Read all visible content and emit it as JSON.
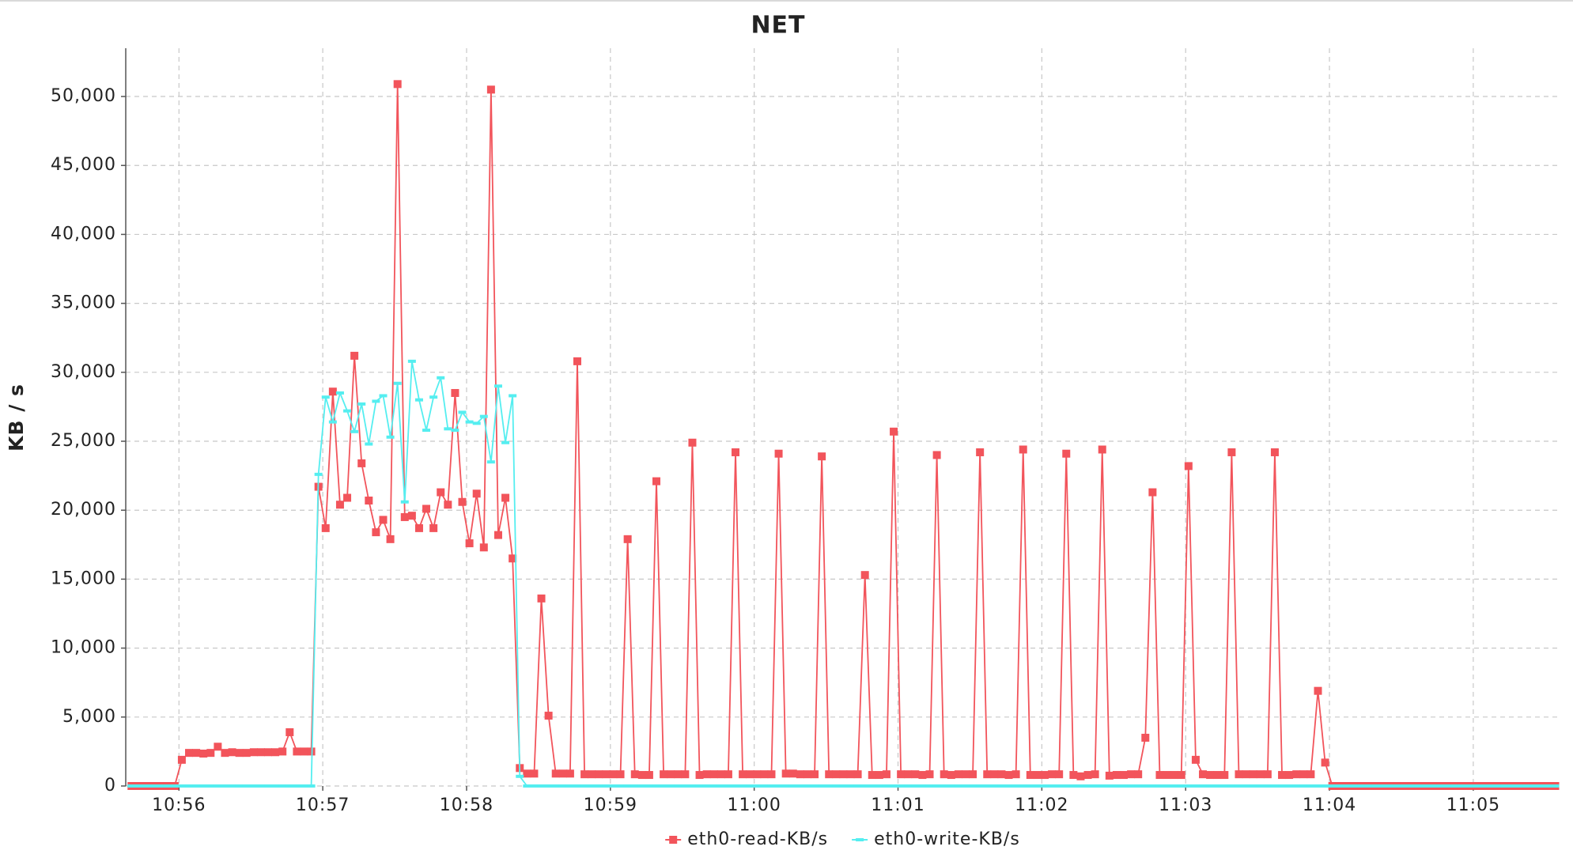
{
  "chart_data": {
    "type": "line",
    "title": "NET",
    "ylabel": "KB / s",
    "x": [
      655.67,
      655.72,
      655.77,
      655.82,
      655.87,
      655.92,
      655.97,
      656.02,
      656.07,
      656.12,
      656.17,
      656.22,
      656.27,
      656.32,
      656.37,
      656.42,
      656.47,
      656.52,
      656.57,
      656.62,
      656.67,
      656.72,
      656.77,
      656.82,
      656.87,
      656.92,
      656.97,
      657.02,
      657.07,
      657.12,
      657.17,
      657.22,
      657.27,
      657.32,
      657.37,
      657.42,
      657.47,
      657.52,
      657.57,
      657.62,
      657.67,
      657.72,
      657.77,
      657.82,
      657.87,
      657.92,
      657.97,
      658.02,
      658.07,
      658.12,
      658.17,
      658.22,
      658.27,
      658.32,
      658.37,
      658.42,
      658.47,
      658.52,
      658.57,
      658.62,
      658.67,
      658.72,
      658.77,
      658.82,
      658.87,
      658.92,
      658.97,
      659.02,
      659.07,
      659.12,
      659.17,
      659.22,
      659.27,
      659.32,
      659.37,
      659.42,
      659.47,
      659.52,
      659.57,
      659.62,
      659.67,
      659.72,
      659.77,
      659.82,
      659.87,
      659.92,
      659.97,
      660.02,
      660.07,
      660.12,
      660.17,
      660.22,
      660.27,
      660.32,
      660.37,
      660.42,
      660.47,
      660.52,
      660.57,
      660.62,
      660.67,
      660.72,
      660.77,
      660.82,
      660.87,
      660.92,
      660.97,
      661.02,
      661.07,
      661.12,
      661.17,
      661.22,
      661.27,
      661.32,
      661.37,
      661.42,
      661.47,
      661.52,
      661.57,
      661.62,
      661.67,
      661.72,
      661.77,
      661.82,
      661.87,
      661.92,
      661.97,
      662.02,
      662.07,
      662.12,
      662.17,
      662.22,
      662.27,
      662.32,
      662.37,
      662.42,
      662.47,
      662.52,
      662.57,
      662.62,
      662.67,
      662.72,
      662.77,
      662.82,
      662.87,
      662.92,
      662.97,
      663.02,
      663.07,
      663.12,
      663.17,
      663.22,
      663.27,
      663.32,
      663.37,
      663.42,
      663.47,
      663.52,
      663.57,
      663.62,
      663.67,
      663.72,
      663.77,
      663.82,
      663.87,
      663.92,
      663.97,
      664.02,
      664.07,
      664.12,
      664.17,
      664.22,
      664.27,
      664.32,
      664.37,
      664.42,
      664.47,
      664.52,
      664.57,
      664.62,
      664.67,
      664.72,
      664.77,
      664.82,
      664.87,
      664.92,
      664.97,
      665.02,
      665.07,
      665.12,
      665.17,
      665.22,
      665.27,
      665.32,
      665.37,
      665.42,
      665.47,
      665.52,
      665.57
    ],
    "xlim": [
      655.63,
      665.6
    ],
    "xticks": [
      {
        "value": 656,
        "label": "10:56"
      },
      {
        "value": 657,
        "label": "10:57"
      },
      {
        "value": 658,
        "label": "10:58"
      },
      {
        "value": 659,
        "label": "10:59"
      },
      {
        "value": 660,
        "label": "11:00"
      },
      {
        "value": 661,
        "label": "11:01"
      },
      {
        "value": 662,
        "label": "11:02"
      },
      {
        "value": 663,
        "label": "11:03"
      },
      {
        "value": 664,
        "label": "11:04"
      },
      {
        "value": 665,
        "label": "11:05"
      }
    ],
    "ylim": [
      0,
      53500
    ],
    "yticks": [
      0,
      {
        "value": 5000,
        "label": "5,000"
      },
      {
        "value": 10000,
        "label": "10,000"
      },
      {
        "value": 15000,
        "label": "15,000"
      },
      {
        "value": 20000,
        "label": "20,000"
      },
      {
        "value": 25000,
        "label": "25,000"
      },
      {
        "value": 30000,
        "label": "30,000"
      },
      {
        "value": 35000,
        "label": "35,000"
      },
      {
        "value": 40000,
        "label": "40,000"
      },
      {
        "value": 45000,
        "label": "45,000"
      },
      {
        "value": 50000,
        "label": "50,000"
      }
    ],
    "grid": true,
    "legend": "bottom",
    "series": [
      {
        "name": "eth0-read-KB/s",
        "color": "#f2545b",
        "marker": "square",
        "values": [
          0,
          0,
          0,
          0,
          0,
          0,
          0,
          1900,
          2400,
          2400,
          2350,
          2400,
          2850,
          2400,
          2450,
          2400,
          2400,
          2450,
          2450,
          2450,
          2450,
          2500,
          3900,
          2500,
          2500,
          2500,
          21700,
          18700,
          28600,
          20400,
          20900,
          31200,
          23400,
          20700,
          18400,
          19300,
          17900,
          50900,
          19500,
          19600,
          18700,
          20100,
          18700,
          21300,
          20400,
          28500,
          20600,
          17600,
          21200,
          17300,
          50500,
          18200,
          20900,
          16500,
          1300,
          900,
          900,
          13600,
          5100,
          900,
          900,
          900,
          30800,
          850,
          850,
          850,
          850,
          850,
          850,
          17900,
          850,
          800,
          800,
          22100,
          850,
          850,
          850,
          850,
          24900,
          800,
          850,
          850,
          850,
          850,
          24200,
          850,
          850,
          850,
          850,
          850,
          24100,
          900,
          900,
          850,
          850,
          850,
          23900,
          850,
          850,
          850,
          850,
          850,
          15300,
          800,
          800,
          850,
          25700,
          850,
          850,
          850,
          800,
          850,
          24000,
          850,
          800,
          850,
          850,
          850,
          24200,
          850,
          850,
          850,
          800,
          850,
          24400,
          800,
          800,
          800,
          850,
          850,
          24100,
          800,
          700,
          800,
          850,
          24400,
          750,
          800,
          800,
          850,
          850,
          3500,
          21300,
          800,
          800,
          800,
          800,
          23200,
          1900,
          850,
          800,
          800,
          800,
          24200,
          850,
          850,
          850,
          850,
          850,
          24200,
          800,
          800,
          850,
          850,
          850,
          6900,
          1700,
          0,
          0,
          0,
          0,
          0,
          0,
          0,
          0,
          0,
          0,
          0,
          0,
          0,
          0,
          0,
          0,
          0,
          0,
          0,
          0,
          0,
          0,
          0,
          0,
          0,
          0,
          0,
          0,
          0,
          0,
          0,
          0
        ]
      },
      {
        "name": "eth0-write-KB/s",
        "color": "#55eef0",
        "marker": "dash",
        "values": [
          0,
          0,
          0,
          0,
          0,
          0,
          0,
          0,
          0,
          0,
          0,
          0,
          0,
          0,
          0,
          0,
          0,
          0,
          0,
          0,
          0,
          0,
          0,
          0,
          0,
          0,
          22600,
          28200,
          26400,
          28500,
          27200,
          25700,
          27700,
          24800,
          27900,
          28300,
          25300,
          29200,
          20600,
          30800,
          28000,
          25800,
          28200,
          29600,
          25900,
          25800,
          27100,
          26400,
          26300,
          26800,
          23500,
          29000,
          24900,
          28300,
          700,
          0,
          0,
          0,
          0,
          0,
          0,
          0,
          0,
          0,
          0,
          0,
          0,
          0,
          0,
          0,
          0,
          0,
          0,
          0,
          0,
          0,
          0,
          0,
          0,
          0,
          0,
          0,
          0,
          0,
          0,
          0,
          0,
          0,
          0,
          0,
          0,
          0,
          0,
          0,
          0,
          0,
          0,
          0,
          0,
          0,
          0,
          0,
          0,
          0,
          0,
          0,
          0,
          0,
          0,
          0,
          0,
          0,
          0,
          0,
          0,
          0,
          0,
          0,
          0,
          0,
          0,
          0,
          0,
          0,
          0,
          0,
          0,
          0,
          0,
          0,
          0,
          0,
          0,
          0,
          0,
          0,
          0,
          0,
          0,
          0,
          0,
          0,
          0,
          0,
          0,
          0,
          0,
          0,
          0,
          0,
          0,
          0,
          0,
          0,
          0,
          0,
          0,
          0,
          0,
          0,
          0,
          0,
          0,
          0,
          0,
          0,
          0,
          0,
          0,
          0,
          0,
          0,
          0,
          0,
          0,
          0,
          0,
          0,
          0,
          0,
          0,
          0,
          0,
          0,
          0,
          0,
          0,
          0,
          0,
          0,
          0,
          0,
          0,
          0,
          0,
          0,
          0,
          0,
          0
        ]
      }
    ]
  }
}
